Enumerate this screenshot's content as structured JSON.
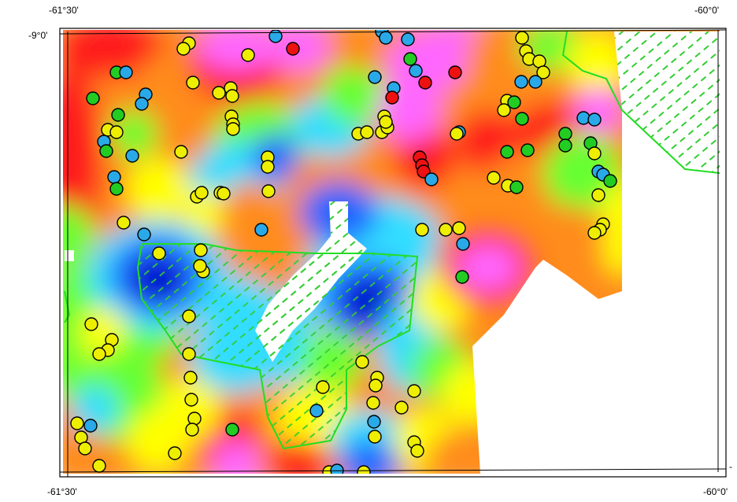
{
  "labels": {
    "top_left_lon": "-61°30'",
    "top_right_lon": "-60°0'",
    "bottom_left_lon": "-61°30'",
    "bottom_right_lon": "-60°0'",
    "left_lat": "-9°0'",
    "right_tick": "-"
  },
  "colors": {
    "magenta": "#ff66ff",
    "red": "#ff1a1a",
    "orange": "#ff8c1a",
    "yellow": "#ffff00",
    "green": "#66ff33",
    "cyan": "#33ddff",
    "blue": "#2266ff",
    "deep_blue": "#0011cc",
    "boundary_green": "#22dd22",
    "hatch_green": "#33cc33",
    "point_blue": "#2aa9e8",
    "point_green": "#22cc22",
    "point_red": "#ee1111",
    "point_orange": "#ff9900",
    "point_yellow": "#eeee00"
  }
}
